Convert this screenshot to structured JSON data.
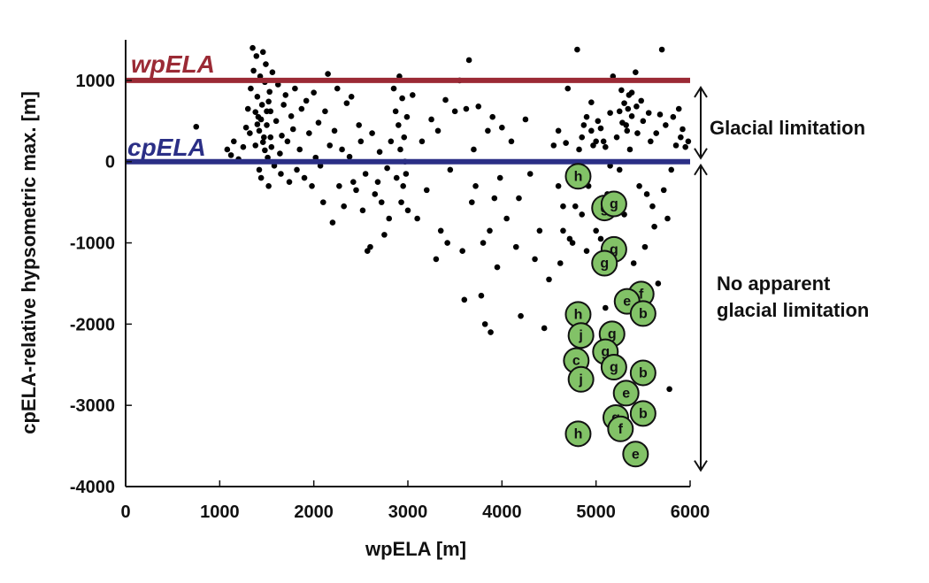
{
  "chart_data": {
    "type": "scatter",
    "xlabel": "wpELA [m]",
    "ylabel": "cpELA-relative hypsometric max. [m]",
    "xlim": [
      0,
      6000
    ],
    "ylim": [
      -4000,
      1500
    ],
    "xticks": [
      0,
      1000,
      2000,
      3000,
      4000,
      5000,
      6000
    ],
    "yticks": [
      -4000,
      -3000,
      -2000,
      -1000,
      0,
      1000
    ],
    "xtick_labels": [
      "0",
      "1000",
      "2000",
      "3000",
      "4000",
      "5000",
      "6000"
    ],
    "ytick_labels": [
      "-4000",
      "-3000",
      "-2000",
      "-1000",
      "0",
      "1000"
    ],
    "grid": false,
    "reference_lines": [
      {
        "name": "wpELA",
        "y": 1000,
        "color": "#9b2a35"
      },
      {
        "name": "cpELA",
        "y": 0,
        "color": "#2b2f86"
      }
    ],
    "annotations": [
      {
        "text": "Glacial limitation",
        "y_range": [
          0,
          1000
        ]
      },
      {
        "text": "No apparent\nglacial limitation",
        "y_range": [
          -3800,
          0
        ]
      }
    ],
    "series": [
      {
        "type": "scatter",
        "color": "#000000",
        "points": [
          [
            750,
            430
          ],
          [
            1080,
            150
          ],
          [
            1120,
            80
          ],
          [
            1150,
            250
          ],
          [
            1200,
            30
          ],
          [
            1250,
            180
          ],
          [
            1280,
            420
          ],
          [
            1300,
            650
          ],
          [
            1320,
            350
          ],
          [
            1330,
            900
          ],
          [
            1350,
            1400
          ],
          [
            1360,
            1120
          ],
          [
            1380,
            200
          ],
          [
            1390,
            1300
          ],
          [
            1400,
            800
          ],
          [
            1410,
            550
          ],
          [
            1420,
            -100
          ],
          [
            1430,
            1050
          ],
          [
            1440,
            -200
          ],
          [
            1450,
            700
          ],
          [
            1460,
            1350
          ],
          [
            1470,
            300
          ],
          [
            1480,
            980
          ],
          [
            1490,
            1200
          ],
          [
            1500,
            450
          ],
          [
            1510,
            50
          ],
          [
            1520,
            -300
          ],
          [
            1530,
            860
          ],
          [
            1540,
            620
          ],
          [
            1560,
            1100
          ],
          [
            1380,
            610
          ],
          [
            1400,
            460
          ],
          [
            1420,
            380
          ],
          [
            1440,
            520
          ],
          [
            1460,
            240
          ],
          [
            1480,
            140
          ],
          [
            1500,
            620
          ],
          [
            1520,
            740
          ],
          [
            1540,
            300
          ],
          [
            1550,
            180
          ],
          [
            1580,
            -50
          ],
          [
            1600,
            500
          ],
          [
            1620,
            950
          ],
          [
            1640,
            100
          ],
          [
            1650,
            -150
          ],
          [
            1660,
            320
          ],
          [
            1680,
            700
          ],
          [
            1700,
            820
          ],
          [
            1720,
            250
          ],
          [
            1740,
            -250
          ],
          [
            1760,
            560
          ],
          [
            1780,
            400
          ],
          [
            1800,
            900
          ],
          [
            1820,
            -100
          ],
          [
            1850,
            150
          ],
          [
            1870,
            650
          ],
          [
            1900,
            -200
          ],
          [
            1920,
            750
          ],
          [
            1950,
            350
          ],
          [
            1980,
            -300
          ],
          [
            2000,
            850
          ],
          [
            2020,
            50
          ],
          [
            2050,
            480
          ],
          [
            2070,
            -50
          ],
          [
            2100,
            -500
          ],
          [
            2120,
            620
          ],
          [
            2150,
            1080
          ],
          [
            2170,
            200
          ],
          [
            2200,
            -750
          ],
          [
            2220,
            380
          ],
          [
            2250,
            900
          ],
          [
            2270,
            -300
          ],
          [
            2300,
            150
          ],
          [
            2320,
            -550
          ],
          [
            2350,
            720
          ],
          [
            2380,
            60
          ],
          [
            2400,
            800
          ],
          [
            2420,
            -250
          ],
          [
            2450,
            -350
          ],
          [
            2480,
            450
          ],
          [
            2500,
            250
          ],
          [
            2520,
            -600
          ],
          [
            2550,
            -150
          ],
          [
            2570,
            -1100
          ],
          [
            2600,
            -1050
          ],
          [
            2620,
            350
          ],
          [
            2650,
            -400
          ],
          [
            2680,
            -250
          ],
          [
            2700,
            120
          ],
          [
            2720,
            -500
          ],
          [
            2750,
            -900
          ],
          [
            2780,
            -80
          ],
          [
            2800,
            -700
          ],
          [
            2820,
            250
          ],
          [
            2850,
            900
          ],
          [
            2870,
            620
          ],
          [
            2880,
            -200
          ],
          [
            2900,
            450
          ],
          [
            2910,
            1050
          ],
          [
            2920,
            150
          ],
          [
            2930,
            -500
          ],
          [
            2940,
            780
          ],
          [
            2950,
            -300
          ],
          [
            2960,
            300
          ],
          [
            2970,
            0
          ],
          [
            2980,
            -150
          ],
          [
            2990,
            550
          ],
          [
            3000,
            -600
          ],
          [
            3050,
            820
          ],
          [
            3100,
            -700
          ],
          [
            3150,
            250
          ],
          [
            3200,
            -350
          ],
          [
            3250,
            520
          ],
          [
            3300,
            -1200
          ],
          [
            3320,
            380
          ],
          [
            3350,
            -850
          ],
          [
            3400,
            760
          ],
          [
            3420,
            -1000
          ],
          [
            3450,
            -100
          ],
          [
            3500,
            620
          ],
          [
            3550,
            1000
          ],
          [
            3580,
            -1100
          ],
          [
            3600,
            -1700
          ],
          [
            3620,
            650
          ],
          [
            3650,
            1250
          ],
          [
            3680,
            -500
          ],
          [
            3700,
            150
          ],
          [
            3720,
            -300
          ],
          [
            3750,
            680
          ],
          [
            3780,
            -1650
          ],
          [
            3800,
            -1000
          ],
          [
            3820,
            -2000
          ],
          [
            3850,
            380
          ],
          [
            3870,
            -850
          ],
          [
            3880,
            -2100
          ],
          [
            3900,
            550
          ],
          [
            3920,
            -450
          ],
          [
            3950,
            -1300
          ],
          [
            3980,
            -200
          ],
          [
            4000,
            420
          ],
          [
            4050,
            -700
          ],
          [
            4100,
            250
          ],
          [
            4150,
            -1050
          ],
          [
            4180,
            -450
          ],
          [
            4200,
            -1900
          ],
          [
            4250,
            520
          ],
          [
            4300,
            -150
          ],
          [
            4350,
            -1200
          ],
          [
            4400,
            -850
          ],
          [
            4450,
            -2050
          ],
          [
            4500,
            -1450
          ],
          [
            4550,
            200
          ],
          [
            4600,
            -300
          ],
          [
            4620,
            -1250
          ],
          [
            4650,
            -550
          ],
          [
            4680,
            230
          ],
          [
            4700,
            900
          ],
          [
            4720,
            -950
          ],
          [
            4750,
            -1800
          ],
          [
            4780,
            -550
          ],
          [
            4800,
            1380
          ],
          [
            4820,
            150
          ],
          [
            4850,
            -650
          ],
          [
            4870,
            450
          ],
          [
            4900,
            -1100
          ],
          [
            4920,
            -300
          ],
          [
            4950,
            730
          ],
          [
            4970,
            200
          ],
          [
            5000,
            -850
          ],
          [
            5020,
            500
          ],
          [
            5050,
            -950
          ],
          [
            5080,
            250
          ],
          [
            5100,
            -1800
          ],
          [
            5120,
            -400
          ],
          [
            5150,
            600
          ],
          [
            5180,
            1050
          ],
          [
            5200,
            -550
          ],
          [
            5220,
            300
          ],
          [
            5250,
            -100
          ],
          [
            5270,
            880
          ],
          [
            5300,
            -650
          ],
          [
            5320,
            450
          ],
          [
            5340,
            650
          ],
          [
            5360,
            150
          ],
          [
            5380,
            850
          ],
          [
            5400,
            -1250
          ],
          [
            5420,
            1100
          ],
          [
            5440,
            350
          ],
          [
            5460,
            -300
          ],
          [
            5480,
            750
          ],
          [
            5500,
            500
          ],
          [
            5520,
            -1050
          ],
          [
            5540,
            -400
          ],
          [
            5560,
            600
          ],
          [
            5580,
            250
          ],
          [
            5600,
            -550
          ],
          [
            5620,
            -800
          ],
          [
            5640,
            350
          ],
          [
            5660,
            -1500
          ],
          [
            5680,
            580
          ],
          [
            5700,
            1380
          ],
          [
            5720,
            -350
          ],
          [
            5740,
            450
          ],
          [
            5760,
            -700
          ],
          [
            5780,
            -2800
          ],
          [
            5800,
            -100
          ],
          [
            5820,
            550
          ],
          [
            5850,
            200
          ],
          [
            5880,
            650
          ],
          [
            5900,
            300
          ],
          [
            5920,
            400
          ],
          [
            5950,
            180
          ],
          [
            5980,
            250
          ],
          [
            5250,
            620
          ],
          [
            5300,
            720
          ],
          [
            5350,
            820
          ],
          [
            5280,
            480
          ],
          [
            5330,
            380
          ],
          [
            5380,
            560
          ],
          [
            5430,
            680
          ],
          [
            4900,
            550
          ],
          [
            4950,
            380
          ],
          [
            5000,
            250
          ],
          [
            5050,
            410
          ],
          [
            5100,
            180
          ],
          [
            5150,
            -50
          ],
          [
            4850,
            300
          ],
          [
            4750,
            -1000
          ],
          [
            4650,
            -850
          ],
          [
            4600,
            380
          ]
        ]
      },
      {
        "type": "labeled-markers",
        "color": "#82c267",
        "stroke": "#111111",
        "points": [
          [
            4810,
            -180,
            "h"
          ],
          [
            5090,
            -570,
            "g"
          ],
          [
            5190,
            -520,
            "g"
          ],
          [
            5190,
            -1080,
            "g"
          ],
          [
            5090,
            -1250,
            "g"
          ],
          [
            5480,
            -1630,
            "f"
          ],
          [
            5330,
            -1720,
            "e"
          ],
          [
            5500,
            -1870,
            "b"
          ],
          [
            4810,
            -1880,
            "h"
          ],
          [
            4840,
            -2140,
            "j"
          ],
          [
            5170,
            -2120,
            "g"
          ],
          [
            5100,
            -2340,
            "g"
          ],
          [
            4790,
            -2450,
            "c"
          ],
          [
            5190,
            -2530,
            "g"
          ],
          [
            5500,
            -2600,
            "b"
          ],
          [
            4840,
            -2680,
            "j"
          ],
          [
            5320,
            -2850,
            "e"
          ],
          [
            5210,
            -3150,
            "g"
          ],
          [
            5500,
            -3100,
            "b"
          ],
          [
            5260,
            -3290,
            "f"
          ],
          [
            4810,
            -3350,
            "h"
          ],
          [
            5420,
            -3600,
            "e"
          ]
        ]
      }
    ]
  }
}
